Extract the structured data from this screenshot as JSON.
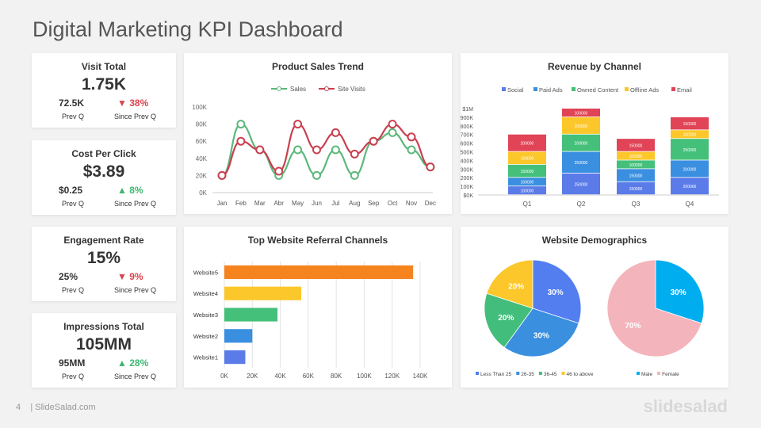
{
  "title": "Digital Marketing KPI Dashboard",
  "kpis": [
    {
      "heading": "Visit Total",
      "value": "1.75K",
      "prev": "72.5K",
      "change": "38%",
      "direction": "down",
      "prev_label": "Prev Q",
      "since_label": "Since Prev Q"
    },
    {
      "heading": "Cost Per Click",
      "value": "$3.89",
      "prev": "$0.25",
      "change": "8%",
      "direction": "up",
      "prev_label": "Prev Q",
      "since_label": "Since Prev Q"
    },
    {
      "heading": "Engagement Rate",
      "value": "15%",
      "prev": "25%",
      "change": "9%",
      "direction": "down",
      "prev_label": "Prev Q",
      "since_label": "Since Prev Q"
    },
    {
      "heading": "Impressions Total",
      "value": "105MM",
      "prev": "95MM",
      "change": "28%",
      "direction": "up",
      "prev_label": "Prev Q",
      "since_label": "Since Prev Q"
    }
  ],
  "footer": {
    "page": "4",
    "source": "| SlideSalad.com",
    "logo": "slidesalad"
  },
  "chart_data": [
    {
      "type": "line",
      "title": "Product Sales Trend",
      "categories": [
        "Jan",
        "Feb",
        "Mar",
        "Abr",
        "May",
        "Jun",
        "Jul",
        "Aug",
        "Sep",
        "Oct",
        "Nov",
        "Dec"
      ],
      "ylim": [
        0,
        100
      ],
      "yticks": [
        "0K",
        "20K",
        "40K",
        "60K",
        "80K",
        "100K"
      ],
      "legend": "top",
      "series": [
        {
          "name": "Sales",
          "color": "#5cb87a",
          "values": [
            20,
            80,
            50,
            20,
            50,
            20,
            50,
            20,
            60,
            70,
            50,
            30
          ]
        },
        {
          "name": "Site Visits",
          "color": "#c9404f",
          "values": [
            20,
            60,
            50,
            25,
            80,
            50,
            70,
            45,
            60,
            80,
            65,
            30
          ]
        }
      ]
    },
    {
      "type": "bar",
      "stacked": true,
      "title": "Revenue by Channel",
      "categories": [
        "Q1",
        "Q2",
        "Q3",
        "Q4"
      ],
      "ylim": [
        0,
        1000000
      ],
      "legend": "top",
      "yticks": [
        "$0K",
        "$100K",
        "$200K",
        "$300K",
        "$400K",
        "$500K",
        "$600K",
        "$700K",
        "$800K",
        "$900K",
        "$1M"
      ],
      "series": [
        {
          "name": "Social",
          "color": "#5b7be8",
          "values": [
            100000,
            250000,
            150000,
            200000
          ]
        },
        {
          "name": "Paid Ads",
          "color": "#3b8fe0",
          "values": [
            100000,
            250000,
            150000,
            200000
          ]
        },
        {
          "name": "Owned Content",
          "color": "#45c07a",
          "values": [
            150000,
            200000,
            100000,
            250000
          ]
        },
        {
          "name": "Offline Ads",
          "color": "#fcc72a",
          "values": [
            150000,
            200000,
            100000,
            100000
          ]
        },
        {
          "name": "Email",
          "color": "#e04456",
          "values": [
            200000,
            100000,
            150000,
            150000
          ]
        }
      ]
    },
    {
      "type": "bar",
      "orientation": "horizontal",
      "title": "Top Website Referral Channels",
      "categories": [
        "Website1",
        "Website2",
        "Website3",
        "Website4",
        "Website5"
      ],
      "values": [
        15,
        20,
        38,
        55,
        135
      ],
      "colors": [
        "#5b7be8",
        "#3b8fe0",
        "#45c07a",
        "#fcc72a",
        "#f5841f"
      ],
      "xlim": [
        0,
        140
      ],
      "xticks": [
        "0K",
        "20K",
        "40K",
        "60K",
        "80K",
        "100K",
        "120K",
        "140K"
      ],
      "grid": true
    },
    {
      "type": "pie",
      "title": "Website Demographics",
      "charts": [
        {
          "labels": [
            "Less Than 25",
            "26-35",
            "36-45",
            "46 to above"
          ],
          "values": [
            30,
            30,
            20,
            20
          ],
          "colors": [
            "#527ef0",
            "#3a8fdf",
            "#42bd7b",
            "#fcc72a"
          ]
        },
        {
          "labels": [
            "Male",
            "Female"
          ],
          "values": [
            30,
            70
          ],
          "colors": [
            "#00adef",
            "#f4b4bb"
          ]
        }
      ]
    }
  ]
}
